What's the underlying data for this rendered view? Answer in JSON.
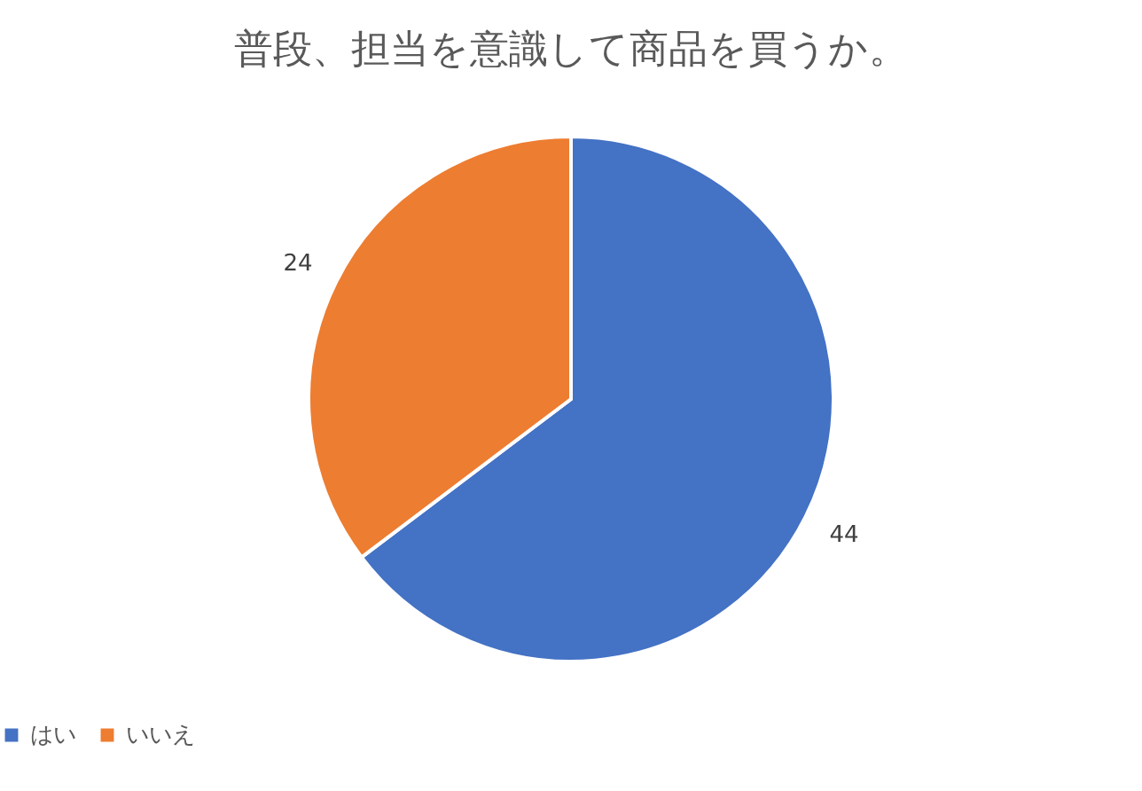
{
  "chart_data": {
    "type": "pie",
    "title": "普段、担当を意識して商品を買うか。",
    "categories": [
      "はい",
      "いいえ"
    ],
    "values": [
      44,
      24
    ],
    "colors": [
      "#4472c4",
      "#ed7d31"
    ],
    "data_labels": true,
    "legend": "bottom"
  }
}
